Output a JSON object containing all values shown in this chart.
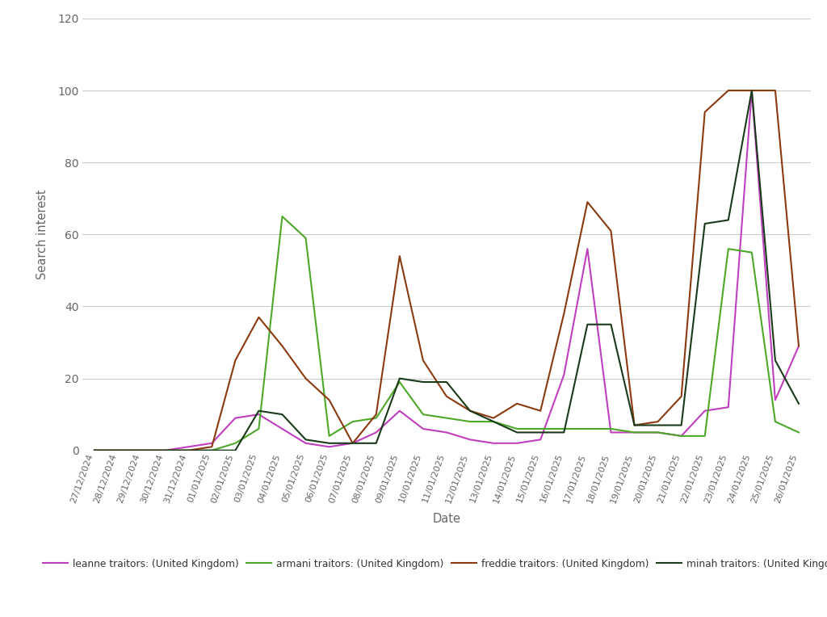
{
  "dates": [
    "27/12/2024",
    "28/12/2024",
    "29/12/2024",
    "30/12/2024",
    "31/12/2024",
    "01/01/2025",
    "02/01/2025",
    "03/01/2025",
    "04/01/2025",
    "05/01/2025",
    "06/01/2025",
    "07/01/2025",
    "08/01/2025",
    "09/01/2025",
    "10/01/2025",
    "11/01/2025",
    "12/01/2025",
    "13/01/2025",
    "14/01/2025",
    "15/01/2025",
    "16/01/2025",
    "17/01/2025",
    "18/01/2025",
    "19/01/2025",
    "20/01/2025",
    "21/01/2025",
    "22/01/2025",
    "23/01/2025",
    "24/01/2025",
    "25/01/2025",
    "26/01/2025"
  ],
  "leanne": [
    0,
    0,
    0,
    0,
    1,
    2,
    9,
    10,
    6,
    2,
    1,
    2,
    5,
    11,
    6,
    5,
    3,
    2,
    2,
    3,
    21,
    56,
    5,
    5,
    5,
    4,
    11,
    12,
    100,
    14,
    29
  ],
  "armani": [
    0,
    0,
    0,
    0,
    0,
    0,
    2,
    6,
    65,
    59,
    4,
    8,
    9,
    19,
    10,
    9,
    8,
    8,
    6,
    6,
    6,
    6,
    6,
    5,
    5,
    4,
    4,
    56,
    55,
    8,
    5
  ],
  "freddie": [
    0,
    0,
    0,
    0,
    0,
    1,
    25,
    37,
    29,
    20,
    14,
    2,
    10,
    54,
    25,
    15,
    11,
    9,
    13,
    11,
    38,
    69,
    61,
    7,
    8,
    15,
    94,
    100,
    100,
    100,
    29
  ],
  "minah": [
    0,
    0,
    0,
    0,
    0,
    0,
    0,
    11,
    10,
    3,
    2,
    2,
    2,
    20,
    19,
    19,
    11,
    8,
    5,
    5,
    5,
    35,
    35,
    7,
    7,
    7,
    63,
    64,
    100,
    25,
    13
  ],
  "leanne_color": "#bf3fbf",
  "armani_color": "#4da829",
  "freddie_color": "#8b3a0f",
  "minah_color": "#1a3a1a",
  "leanne_label": "leanne traitors: (United Kingdom)",
  "armani_label": "armani traitors: (United Kingdom)",
  "freddie_label": "freddie traitors: (United Kingdom)",
  "minah_label": "minah traitors: (United Kingdom)",
  "ylabel": "Search interest",
  "xlabel": "Date",
  "ylim": [
    0,
    120
  ],
  "yticks": [
    0,
    20,
    40,
    60,
    80,
    100,
    120
  ],
  "background_color": "#ffffff",
  "grid_color": "#cccccc",
  "linewidth": 1.5
}
